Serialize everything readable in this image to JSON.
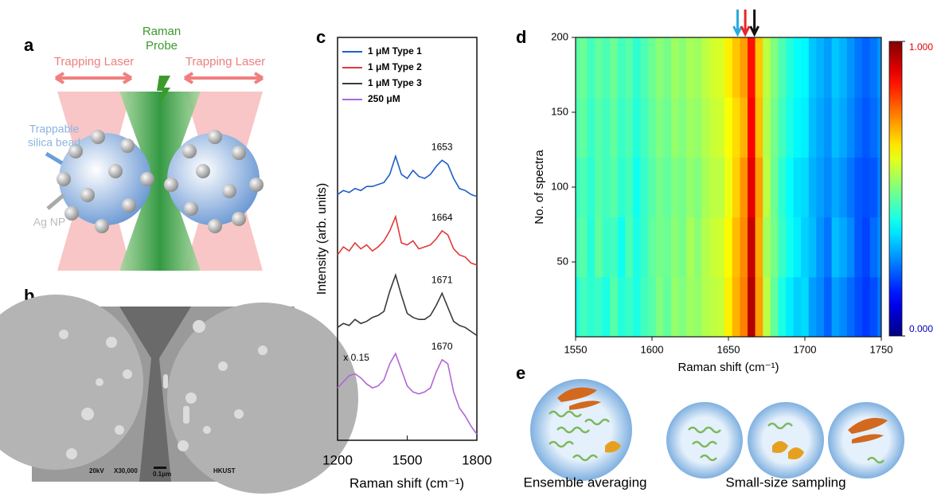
{
  "panel_labels": [
    "a",
    "b",
    "c",
    "d",
    "e"
  ],
  "schematic": {
    "left_laser": "Trapping Laser",
    "right_laser": "Trapping Laser",
    "probe": [
      "Raman",
      "Probe"
    ],
    "bead": [
      "Trappable",
      "silica bead"
    ],
    "np": "Ag NP"
  },
  "sem": {
    "voltage": "20kV",
    "magnification": "X30,000",
    "scale": "0.1μm",
    "institution": "HKUST"
  },
  "chart_data": [
    {
      "type": "line",
      "x_label": "Raman shift (cm⁻¹)",
      "y_label": "Intensity (arb. units)",
      "x": [
        1200,
        1225,
        1250,
        1275,
        1300,
        1325,
        1350,
        1375,
        1400,
        1425,
        1450,
        1475,
        1500,
        1525,
        1550,
        1575,
        1600,
        1625,
        1650,
        1675,
        1700,
        1725,
        1750,
        1775,
        1800
      ],
      "xlim": [
        1200,
        1800
      ],
      "xticks": [
        1200,
        1500,
        1800
      ],
      "ylim": [
        0,
        10
      ],
      "legend": "top",
      "series": [
        {
          "name": "1 μM Type 1",
          "color": "#1f5fc8",
          "annotation": "1653",
          "values": [
            6.1,
            6.2,
            6.15,
            6.25,
            6.2,
            6.3,
            6.3,
            6.35,
            6.4,
            6.6,
            7.05,
            6.6,
            6.5,
            6.7,
            6.55,
            6.5,
            6.6,
            6.8,
            6.95,
            6.85,
            6.5,
            6.25,
            6.2,
            6.1,
            6.05
          ]
        },
        {
          "name": "1 μM Type 2",
          "color": "#e03a3a",
          "annotation": "1664",
          "values": [
            4.6,
            4.8,
            4.7,
            4.9,
            4.75,
            4.85,
            4.7,
            4.8,
            4.95,
            5.2,
            5.55,
            4.9,
            4.85,
            4.95,
            4.75,
            4.8,
            4.85,
            5.0,
            5.2,
            5.1,
            4.75,
            4.6,
            4.55,
            4.4,
            4.35
          ]
        },
        {
          "name": "1 μM Type 3",
          "color": "#3a3a3a",
          "annotation": "1671",
          "values": [
            2.8,
            2.9,
            2.85,
            3.0,
            2.9,
            2.95,
            3.05,
            3.1,
            3.2,
            3.7,
            4.1,
            3.6,
            3.15,
            3.05,
            3.0,
            3.0,
            3.1,
            3.35,
            3.65,
            3.3,
            2.95,
            2.85,
            2.8,
            2.7,
            2.6
          ]
        },
        {
          "name": "250 μM",
          "color": "#b266d6",
          "annotation": "1670",
          "scale_note": "x 0.15",
          "values": [
            1.3,
            1.45,
            1.6,
            1.65,
            1.55,
            1.4,
            1.3,
            1.35,
            1.5,
            1.9,
            2.15,
            1.75,
            1.35,
            1.2,
            1.15,
            1.2,
            1.3,
            1.7,
            2.0,
            1.9,
            1.2,
            0.8,
            0.6,
            0.35,
            0.15
          ]
        }
      ]
    },
    {
      "type": "heatmap",
      "x_label": "Raman shift (cm⁻¹)",
      "y_label": "No. of spectra",
      "colormap": "jet",
      "x": [
        1550,
        1555,
        1560,
        1565,
        1570,
        1575,
        1580,
        1585,
        1590,
        1595,
        1600,
        1605,
        1610,
        1615,
        1620,
        1625,
        1630,
        1635,
        1640,
        1645,
        1650,
        1655,
        1660,
        1665,
        1670,
        1675,
        1680,
        1685,
        1690,
        1695,
        1700,
        1705,
        1710,
        1715,
        1720,
        1725,
        1730,
        1735,
        1740,
        1745,
        1750
      ],
      "y_bins": [
        0,
        40,
        80,
        120,
        160,
        200
      ],
      "z": [
        [
          0.4,
          0.44,
          0.42,
          0.43,
          0.4,
          0.46,
          0.41,
          0.43,
          0.4,
          0.44,
          0.46,
          0.5,
          0.47,
          0.52,
          0.5,
          0.53,
          0.52,
          0.55,
          0.56,
          0.57,
          0.64,
          0.7,
          0.75,
          0.95,
          0.72,
          0.56,
          0.47,
          0.4,
          0.36,
          0.33,
          0.34,
          0.28,
          0.26,
          0.22,
          0.28,
          0.26,
          0.23,
          0.2,
          0.18,
          0.2,
          0.24
        ],
        [
          0.44,
          0.46,
          0.41,
          0.47,
          0.43,
          0.44,
          0.39,
          0.45,
          0.4,
          0.43,
          0.47,
          0.49,
          0.48,
          0.51,
          0.49,
          0.54,
          0.51,
          0.55,
          0.57,
          0.58,
          0.63,
          0.69,
          0.74,
          0.93,
          0.71,
          0.54,
          0.49,
          0.43,
          0.39,
          0.36,
          0.33,
          0.31,
          0.27,
          0.24,
          0.31,
          0.29,
          0.26,
          0.21,
          0.19,
          0.23,
          0.26
        ],
        [
          0.43,
          0.45,
          0.42,
          0.46,
          0.44,
          0.46,
          0.42,
          0.44,
          0.39,
          0.43,
          0.46,
          0.49,
          0.47,
          0.5,
          0.49,
          0.52,
          0.5,
          0.54,
          0.56,
          0.56,
          0.61,
          0.67,
          0.73,
          0.9,
          0.72,
          0.56,
          0.48,
          0.42,
          0.38,
          0.35,
          0.34,
          0.3,
          0.28,
          0.26,
          0.29,
          0.27,
          0.24,
          0.21,
          0.2,
          0.21,
          0.25
        ],
        [
          0.45,
          0.47,
          0.43,
          0.46,
          0.44,
          0.47,
          0.43,
          0.45,
          0.41,
          0.44,
          0.47,
          0.5,
          0.48,
          0.52,
          0.5,
          0.53,
          0.52,
          0.55,
          0.57,
          0.58,
          0.62,
          0.66,
          0.7,
          0.88,
          0.69,
          0.55,
          0.49,
          0.44,
          0.4,
          0.37,
          0.36,
          0.31,
          0.29,
          0.27,
          0.31,
          0.29,
          0.26,
          0.23,
          0.21,
          0.23,
          0.26
        ],
        [
          0.46,
          0.48,
          0.44,
          0.47,
          0.45,
          0.48,
          0.44,
          0.46,
          0.42,
          0.45,
          0.48,
          0.51,
          0.49,
          0.53,
          0.51,
          0.54,
          0.53,
          0.56,
          0.58,
          0.59,
          0.64,
          0.68,
          0.72,
          0.86,
          0.68,
          0.56,
          0.5,
          0.45,
          0.41,
          0.38,
          0.37,
          0.32,
          0.3,
          0.28,
          0.32,
          0.3,
          0.27,
          0.24,
          0.22,
          0.24,
          0.27
        ]
      ],
      "xlim": [
        1550,
        1750
      ],
      "xticks": [
        1550,
        1600,
        1650,
        1700,
        1750
      ],
      "ylim": [
        0,
        200
      ],
      "yticks": [
        50,
        100,
        150,
        200
      ],
      "colorbar": {
        "ticks": [
          {
            "value": 0,
            "label": "0.000"
          },
          {
            "value": 1,
            "label": "1.000"
          }
        ]
      },
      "markers": [
        {
          "x": 1656,
          "color": "#29abe2"
        },
        {
          "x": 1661,
          "color": "#e8262b"
        },
        {
          "x": 1667,
          "color": "#111111"
        }
      ]
    }
  ],
  "illustration": {
    "left_caption": "Ensemble averaging",
    "right_caption": "Small-size sampling"
  }
}
